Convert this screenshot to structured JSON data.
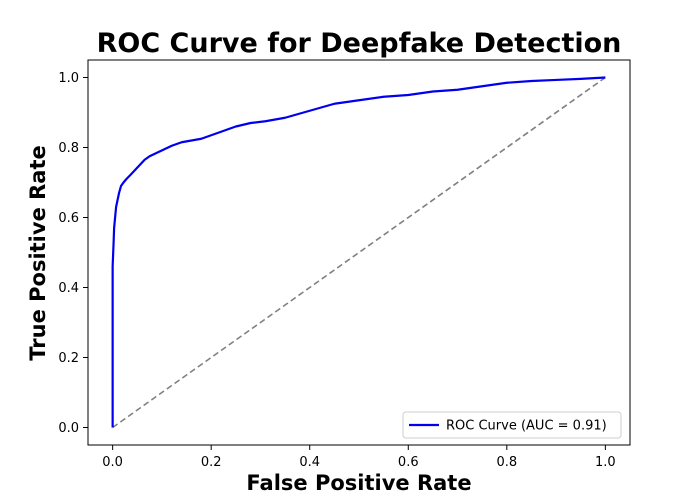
{
  "chart_data": {
    "type": "line",
    "title": "ROC Curve for Deepfake Detection",
    "xlabel": "False Positive Rate",
    "ylabel": "True Positive Rate",
    "xlim": [
      -0.05,
      1.05
    ],
    "ylim": [
      -0.05,
      1.05
    ],
    "xticks": [
      0.0,
      0.2,
      0.4,
      0.6,
      0.8,
      1.0
    ],
    "xtick_labels": [
      "0.0",
      "0.2",
      "0.4",
      "0.6",
      "0.8",
      "1.0"
    ],
    "yticks": [
      0.0,
      0.2,
      0.4,
      0.6,
      0.8,
      1.0
    ],
    "ytick_labels": [
      "0.0",
      "0.2",
      "0.4",
      "0.6",
      "0.8",
      "1.0"
    ],
    "grid": false,
    "legend_position": "lower-right",
    "series": [
      {
        "name": "ROC Curve (AUC = 0.91)",
        "color": "#0000ee",
        "style": "solid",
        "x": [
          0.0,
          0.0,
          0.002,
          0.003,
          0.005,
          0.007,
          0.01,
          0.013,
          0.017,
          0.022,
          0.028,
          0.035,
          0.045,
          0.055,
          0.065,
          0.075,
          0.09,
          0.105,
          0.12,
          0.14,
          0.16,
          0.18,
          0.2,
          0.22,
          0.25,
          0.28,
          0.31,
          0.35,
          0.4,
          0.45,
          0.5,
          0.55,
          0.6,
          0.65,
          0.7,
          0.75,
          0.8,
          0.85,
          0.9,
          0.95,
          1.0
        ],
        "y": [
          0.0,
          0.46,
          0.53,
          0.57,
          0.6,
          0.63,
          0.65,
          0.67,
          0.69,
          0.7,
          0.71,
          0.72,
          0.735,
          0.75,
          0.765,
          0.775,
          0.785,
          0.795,
          0.805,
          0.815,
          0.82,
          0.825,
          0.835,
          0.845,
          0.86,
          0.87,
          0.875,
          0.885,
          0.905,
          0.925,
          0.935,
          0.945,
          0.95,
          0.96,
          0.965,
          0.975,
          0.985,
          0.99,
          0.993,
          0.996,
          1.0
        ]
      },
      {
        "color": "#808080",
        "style": "dashed",
        "x": [
          0.0,
          1.0
        ],
        "y": [
          0.0,
          1.0
        ]
      }
    ]
  }
}
